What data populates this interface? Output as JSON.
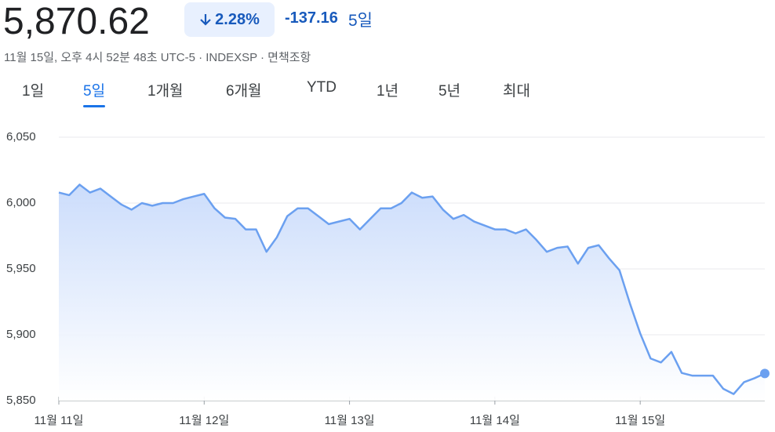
{
  "header": {
    "price": "5,870.62",
    "change_percent": "2.28%",
    "change": "-137.16",
    "period": "5일",
    "subtitle": "11월 15일, 오후 4시 52분 48초 UTC-5 · INDEXSP · 면책조항"
  },
  "tabs": [
    "1일",
    "5일",
    "1개월",
    "6개월",
    "YTD",
    "1년",
    "5년",
    "최대"
  ],
  "active_tab": 1,
  "chart_data": {
    "type": "line",
    "color": "#6ba0f0",
    "grid": true,
    "categories": [
      "11월 11일",
      null,
      null,
      null,
      null,
      null,
      null,
      null,
      null,
      null,
      null,
      null,
      null,
      null,
      "11월 12일",
      null,
      null,
      null,
      null,
      null,
      null,
      null,
      null,
      null,
      null,
      null,
      null,
      null,
      "11월 13일",
      null,
      null,
      null,
      null,
      null,
      null,
      null,
      null,
      null,
      null,
      null,
      null,
      null,
      "11월 14일",
      null,
      null,
      null,
      null,
      null,
      null,
      null,
      null,
      null,
      null,
      null,
      null,
      null,
      "11월 15일",
      null,
      null,
      null,
      null,
      null,
      null,
      null,
      null,
      null,
      null,
      null,
      null
    ],
    "values": [
      6008,
      6006,
      6014,
      6008,
      6011,
      6005,
      5999,
      5995,
      6000,
      5998,
      6000,
      6000,
      6003,
      6005,
      6007,
      5996,
      5989,
      5988,
      5980,
      5980,
      5963,
      5974,
      5990,
      5996,
      5996,
      5990,
      5984,
      5986,
      5988,
      5980,
      5988,
      5996,
      5996,
      6000,
      6008,
      6004,
      6005,
      5995,
      5988,
      5991,
      5986,
      5983,
      5980,
      5980,
      5977,
      5980,
      5972,
      5963,
      5966,
      5967,
      5954,
      5966,
      5968,
      5958,
      5949,
      5924,
      5901,
      5882,
      5879,
      5887,
      5871,
      5869,
      5869,
      5869,
      5859,
      5855,
      5864,
      5867,
      5870.62
    ],
    "ylim": [
      5850,
      6050
    ],
    "yticks": [
      {
        "value": 5850,
        "label": "5,850"
      },
      {
        "value": 5900,
        "label": "5,900"
      },
      {
        "value": 5950,
        "label": "5,950"
      },
      {
        "value": 6000,
        "label": "6,000"
      },
      {
        "value": 6050,
        "label": "6,050"
      }
    ]
  }
}
